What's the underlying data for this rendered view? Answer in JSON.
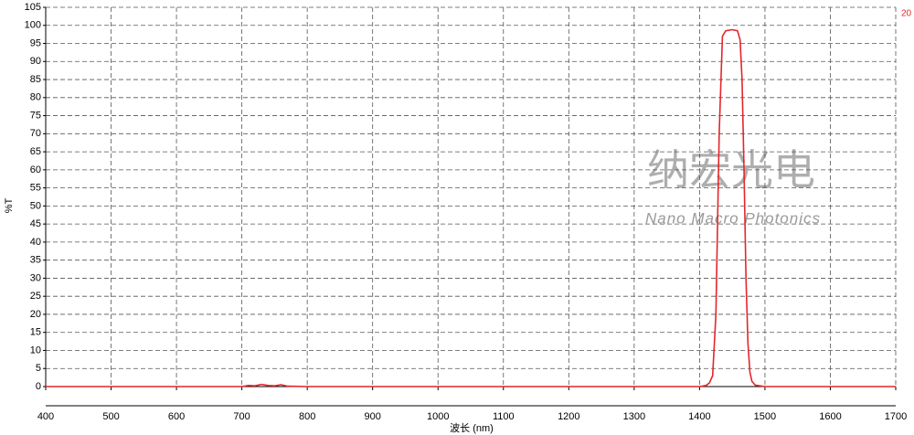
{
  "chart_data": {
    "type": "line",
    "xlabel": "波长 (nm)",
    "ylabel": "%T",
    "corner_label": "20",
    "watermark": "纳宏光电",
    "watermark_subtitle": "Nano Macro Photonics",
    "x": [
      400,
      700,
      710,
      720,
      730,
      740,
      750,
      760,
      770,
      800,
      1000,
      1200,
      1400,
      1410,
      1415,
      1420,
      1425,
      1430,
      1435,
      1440,
      1450,
      1458,
      1462,
      1465,
      1468,
      1471,
      1474,
      1477,
      1480,
      1485,
      1500,
      1600,
      1700
    ],
    "series": [
      {
        "name": "%T",
        "color": "#e3262b",
        "values": [
          0,
          0,
          0.3,
          0.2,
          0.6,
          0.3,
          0.2,
          0.5,
          0.1,
          0,
          0,
          0,
          0,
          0.3,
          1,
          3,
          20,
          70,
          97,
          98.5,
          98.8,
          98.5,
          96,
          85,
          60,
          30,
          12,
          4,
          1.5,
          0.4,
          0,
          0,
          0
        ]
      }
    ],
    "xlim": [
      400,
      1700
    ],
    "xticks": [
      400,
      500,
      600,
      700,
      800,
      900,
      1000,
      1100,
      1200,
      1300,
      1400,
      1500,
      1600,
      1700
    ],
    "ylim": [
      0,
      105
    ],
    "yticks": [
      0,
      5,
      10,
      15,
      20,
      25,
      30,
      35,
      40,
      45,
      50,
      55,
      60,
      65,
      70,
      75,
      80,
      85,
      90,
      95,
      100,
      105
    ],
    "grid": true
  }
}
